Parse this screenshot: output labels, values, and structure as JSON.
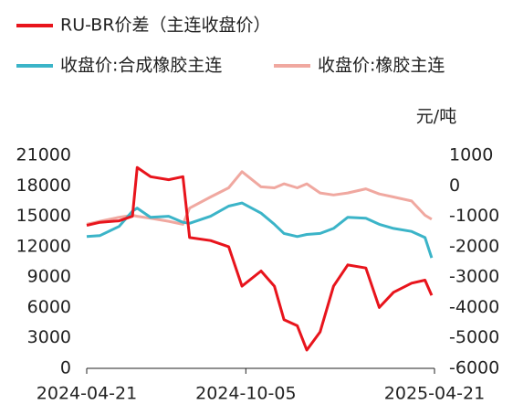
{
  "chart_data": {
    "type": "line",
    "y2label": "元/吨",
    "x": [
      "2024-04-21",
      "2024-05-05",
      "2024-05-25",
      "2024-06-08",
      "2024-06-13",
      "2024-06-27",
      "2024-07-16",
      "2024-07-31",
      "2024-08-07",
      "2024-08-29",
      "2024-09-17",
      "2024-10-01",
      "2024-10-21",
      "2024-11-04",
      "2024-11-14",
      "2024-11-28",
      "2024-12-08",
      "2024-12-22",
      "2025-01-05",
      "2025-01-20",
      "2025-02-08",
      "2025-02-22",
      "2025-03-09",
      "2025-03-28",
      "2025-04-11",
      "2025-04-18"
    ],
    "xlim": [
      "2024-04-21",
      "2025-04-21"
    ],
    "xticks": [
      "2024-04-21",
      "2024-10-05",
      "2025-04-21"
    ],
    "ylim": [
      0,
      21000
    ],
    "yticks": [
      0,
      3000,
      6000,
      9000,
      12000,
      15000,
      18000,
      21000
    ],
    "y2lim": [
      -6000,
      1000
    ],
    "y2ticks": [
      -6000,
      -5000,
      -4000,
      -3000,
      -2000,
      -1000,
      0,
      1000
    ],
    "series": [
      {
        "name": "RU-BR价差（主连收盘价）",
        "color": "#e8141c",
        "axis": "y2",
        "values": [
          -1300,
          -1200,
          -1150,
          -1000,
          600,
          300,
          200,
          300,
          -1700,
          -1800,
          -2000,
          -3300,
          -2800,
          -3300,
          -4400,
          -4600,
          -5400,
          -4800,
          -3300,
          -2600,
          -2700,
          -4000,
          -3500,
          -3200,
          -3100,
          -3600
        ]
      },
      {
        "name": "收盘价:合成橡胶主连",
        "color": "#3bb4c8",
        "values": [
          13000,
          13100,
          14000,
          15500,
          15800,
          14900,
          15000,
          14400,
          14300,
          15000,
          16000,
          16300,
          15300,
          14200,
          13300,
          13000,
          13200,
          13300,
          13800,
          14900,
          14800,
          14200,
          13800,
          13500,
          12900,
          10900
        ]
      },
      {
        "name": "收盘价:橡胶主连",
        "color": "#f0a8a0",
        "values": [
          14200,
          14500,
          14900,
          15100,
          15000,
          14800,
          14500,
          14200,
          15800,
          16900,
          17800,
          19400,
          17900,
          17800,
          18200,
          17800,
          18200,
          17300,
          17100,
          17300,
          17700,
          17200,
          16900,
          16500,
          15100,
          14700
        ]
      }
    ]
  }
}
